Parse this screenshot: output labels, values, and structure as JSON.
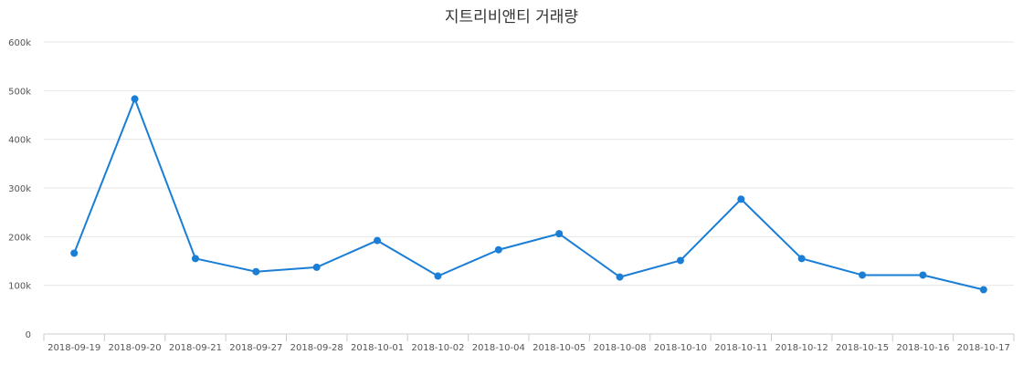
{
  "chart_data": {
    "type": "line",
    "title": "지트리비앤티 거래량",
    "xlabel": "",
    "ylabel": "",
    "categories": [
      "2018-09-19",
      "2018-09-20",
      "2018-09-21",
      "2018-09-27",
      "2018-09-28",
      "2018-10-01",
      "2018-10-02",
      "2018-10-04",
      "2018-10-05",
      "2018-10-08",
      "2018-10-10",
      "2018-10-11",
      "2018-10-12",
      "2018-10-15",
      "2018-10-16",
      "2018-10-17"
    ],
    "series": [
      {
        "values": [
          166000,
          483000,
          155000,
          128000,
          137000,
          192000,
          119000,
          173000,
          206000,
          117000,
          151000,
          277000,
          155000,
          121000,
          121000,
          91000
        ]
      }
    ],
    "ylim": [
      0,
      600000
    ],
    "yticks": [
      0,
      100000,
      200000,
      300000,
      400000,
      500000,
      600000
    ],
    "ytick_labels": [
      "0",
      "100k",
      "200k",
      "300k",
      "400k",
      "500k",
      "600k"
    ],
    "grid": true,
    "legend": "none",
    "colors": {
      "line": "#1a7ed6",
      "grid": "#e6e6e6",
      "axis": "#cccccc"
    }
  }
}
